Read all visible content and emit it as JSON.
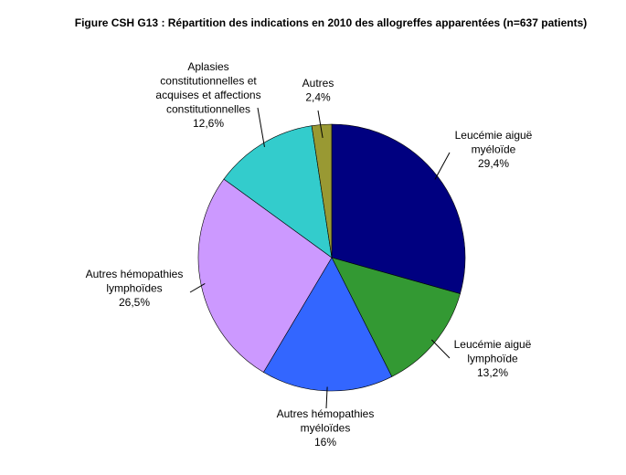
{
  "chart_data": {
    "type": "pie",
    "title": "Figure CSH G13 : Répartition des indications en 2010 des allogreffes apparentées (n=637 patients)",
    "categories": [
      "Leucémie aiguë\nmyéloïde",
      "Leucémie aiguë\nlymphoïde",
      "Autres hémopathies\nmyéloïdes",
      "Autres hémopathies\nlymphoïdes",
      "Aplasies\nconstitutionnelles et\nacquises et affections\nconstitutionnelles",
      "Autres"
    ],
    "values": [
      29.4,
      13.2,
      16,
      26.5,
      12.6,
      2.4
    ],
    "value_labels": [
      "29,4%",
      "13,2%",
      "16%",
      "26,5%",
      "12,6%",
      "2,4%"
    ],
    "colors": [
      "#000080",
      "#339933",
      "#3366ff",
      "#cc99ff",
      "#33cccc",
      "#999933"
    ]
  }
}
